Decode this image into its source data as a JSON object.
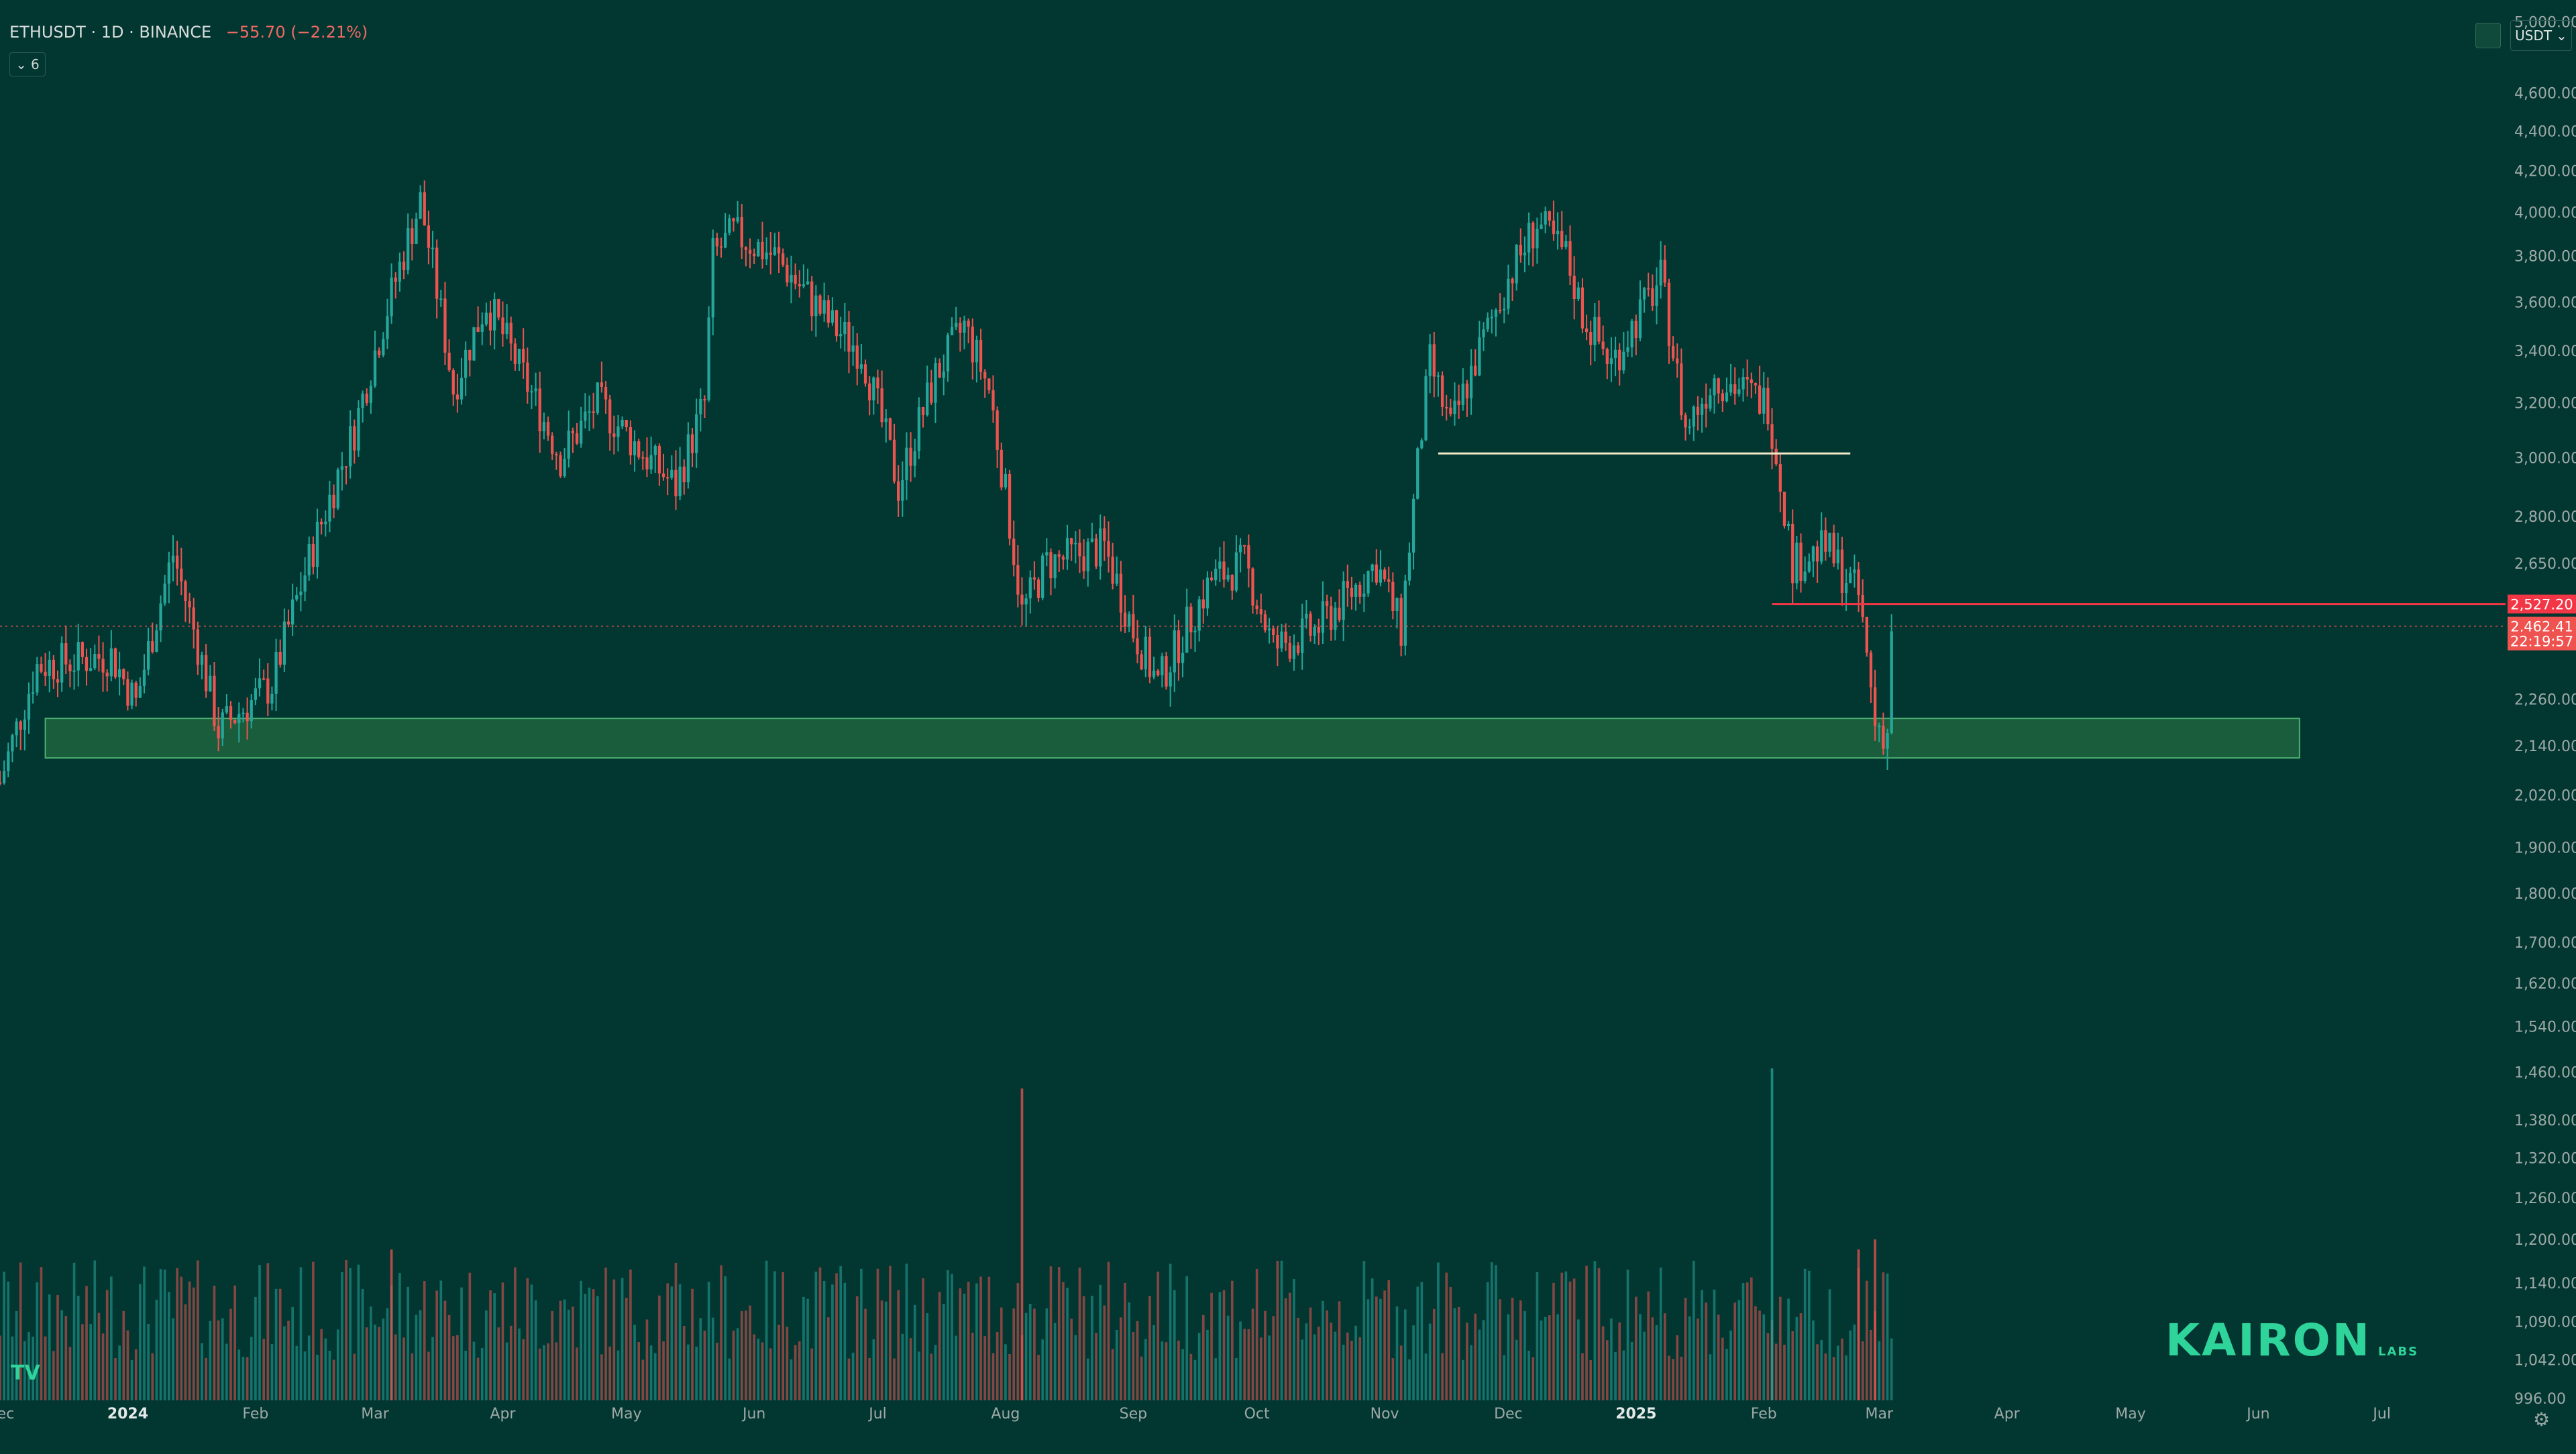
{
  "header": {
    "symbol_line": "ETHUSDT · 1D · BINANCE",
    "change_text": "−55.70 (−2.21%)",
    "indicator_count": "6"
  },
  "currency_button": "USDT",
  "logo": {
    "name": "KAIRON",
    "suffix": "LABS"
  },
  "tv_logo": "TV",
  "chart_data": {
    "type": "candlestick",
    "title": "ETHUSDT · 1D · BINANCE",
    "y_axis": {
      "scale": "log",
      "range": [
        996,
        5050
      ],
      "ticks": [
        5000,
        4600,
        4400,
        4200,
        4000,
        3800,
        3600,
        3400,
        3200,
        3000,
        2800,
        2650,
        2260,
        2140,
        2020,
        1900,
        1800,
        1700,
        1620,
        1540,
        1460,
        1380,
        1320,
        1260,
        1200,
        1140,
        1090,
        1042,
        996
      ],
      "tick_labels": [
        "5,000.00",
        "4,600.00",
        "4,400.00",
        "4,200.00",
        "4,000.00",
        "3,800.00",
        "3,600.00",
        "3,400.00",
        "3,200.00",
        "3,000.00",
        "2,800.00",
        "2,650.00",
        "2,260.00",
        "2,140.00",
        "2,020.00",
        "1,900.00",
        "1,800.00",
        "1,700.00",
        "1,620.00",
        "1,540.00",
        "1,460.00",
        "1,380.00",
        "1,320.00",
        "1,260.00",
        "1,200.00",
        "1,140.00",
        "1,090.00",
        "1,042.00",
        "996.00"
      ]
    },
    "x_axis": {
      "range": [
        "2023-12-01",
        "2025-07-31"
      ],
      "ticks": [
        "2023-12-01",
        "2024-01-01",
        "2024-02-01",
        "2024-03-01",
        "2024-04-01",
        "2024-05-01",
        "2024-06-01",
        "2024-07-01",
        "2024-08-01",
        "2024-09-01",
        "2024-10-01",
        "2024-11-01",
        "2024-12-01",
        "2025-01-01",
        "2025-02-01",
        "2025-03-01",
        "2025-04-01",
        "2025-05-01",
        "2025-06-01",
        "2025-07-01"
      ],
      "tick_labels": [
        "Dec",
        "2024",
        "Feb",
        "Mar",
        "Apr",
        "May",
        "Jun",
        "Jul",
        "Aug",
        "Sep",
        "Oct",
        "Nov",
        "Dec",
        "2025",
        "Feb",
        "Mar",
        "Apr",
        "May",
        "Jun",
        "Jul"
      ]
    },
    "colors": {
      "up": "#26a69a",
      "down": "#ef5350",
      "background": "#013631",
      "zone": "#2e7d46",
      "resistance": "#f23645",
      "support_line": "#f2e9c8"
    },
    "price_labels": [
      {
        "text": "2,527.20",
        "value": 2527.2,
        "color": "#f23645"
      },
      {
        "text": "2,462.41",
        "value": 2462.41,
        "color": "#ef5350"
      },
      {
        "text": "22:19:57",
        "value": 2420,
        "color": "#ef5350"
      }
    ],
    "annotations": [
      {
        "type": "zone",
        "from": "2023-12-12",
        "to": "2025-06-11",
        "low": 2110,
        "high": 2210
      },
      {
        "type": "hline",
        "from": "2024-11-14",
        "to": "2025-02-22",
        "value": 3015
      },
      {
        "type": "hline",
        "from": "2025-02-03",
        "to": "2025-07-31",
        "value": 2527.2
      },
      {
        "type": "dotted_hline",
        "value": 2462.41
      }
    ],
    "price_anchors": [
      [
        "2023-12-01",
        2050
      ],
      [
        "2023-12-10",
        2350
      ],
      [
        "2023-12-28",
        2380
      ],
      [
        "2024-01-03",
        2250
      ],
      [
        "2024-01-12",
        2680
      ],
      [
        "2024-01-23",
        2180
      ],
      [
        "2024-02-05",
        2300
      ],
      [
        "2024-02-25",
        3100
      ],
      [
        "2024-03-12",
        4050
      ],
      [
        "2024-03-20",
        3250
      ],
      [
        "2024-03-28",
        3600
      ],
      [
        "2024-04-06",
        3300
      ],
      [
        "2024-04-15",
        3000
      ],
      [
        "2024-04-24",
        3200
      ],
      [
        "2024-05-06",
        3000
      ],
      [
        "2024-05-13",
        2900
      ],
      [
        "2024-05-20",
        3200
      ],
      [
        "2024-05-22",
        3800
      ],
      [
        "2024-05-27",
        3900
      ],
      [
        "2024-06-06",
        3800
      ],
      [
        "2024-06-20",
        3500
      ],
      [
        "2024-06-27",
        3400
      ],
      [
        "2024-07-06",
        2900
      ],
      [
        "2024-07-15",
        3300
      ],
      [
        "2024-07-22",
        3500
      ],
      [
        "2024-07-28",
        3250
      ],
      [
        "2024-08-05",
        2500
      ],
      [
        "2024-08-11",
        2650
      ],
      [
        "2024-08-25",
        2700
      ],
      [
        "2024-09-01",
        2450
      ],
      [
        "2024-09-07",
        2300
      ],
      [
        "2024-09-20",
        2600
      ],
      [
        "2024-09-28",
        2650
      ],
      [
        "2024-10-05",
        2400
      ],
      [
        "2024-10-15",
        2450
      ],
      [
        "2024-10-23",
        2550
      ],
      [
        "2024-10-30",
        2650
      ],
      [
        "2024-11-05",
        2450
      ],
      [
        "2024-11-10",
        3100
      ],
      [
        "2024-11-12",
        3350
      ],
      [
        "2024-11-17",
        3100
      ],
      [
        "2024-11-24",
        3400
      ],
      [
        "2024-12-01",
        3700
      ],
      [
        "2024-12-08",
        3950
      ],
      [
        "2024-12-15",
        3800
      ],
      [
        "2024-12-19",
        3550
      ],
      [
        "2024-12-26",
        3350
      ],
      [
        "2025-01-07",
        3700
      ],
      [
        "2025-01-13",
        3100
      ],
      [
        "2025-01-20",
        3300
      ],
      [
        "2025-02-02",
        3200
      ],
      [
        "2025-02-08",
        2650
      ],
      [
        "2025-02-16",
        2700
      ],
      [
        "2025-02-24",
        2550
      ],
      [
        "2025-02-28",
        2200
      ],
      [
        "2025-03-03",
        2170
      ],
      [
        "2025-03-04",
        2462.41
      ]
    ],
    "volume_spikes": [
      {
        "date": "2024-08-05",
        "value": 6.2
      },
      {
        "date": "2025-02-03",
        "value": 6.6
      },
      {
        "date": "2024-03-05",
        "value": 3.0
      },
      {
        "date": "2025-02-24",
        "value": 3.0
      },
      {
        "date": "2025-02-28",
        "value": 3.2
      }
    ]
  }
}
